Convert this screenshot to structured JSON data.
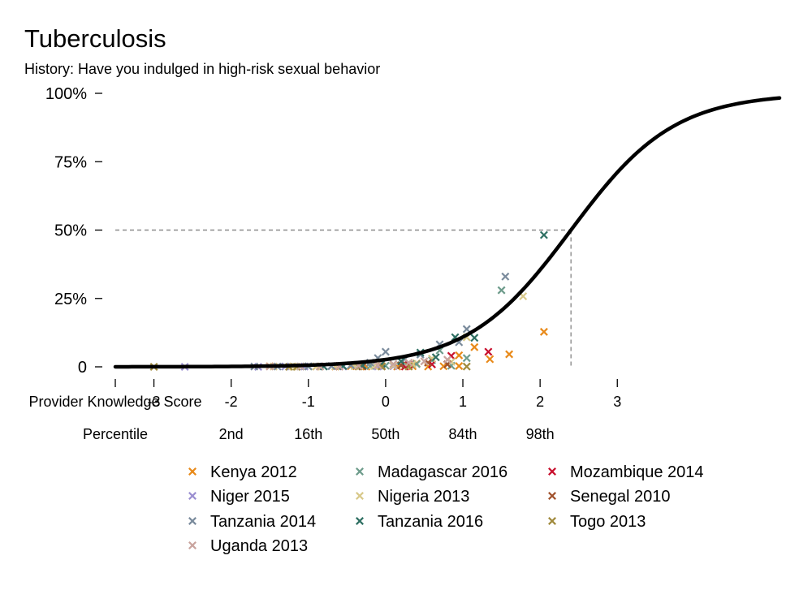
{
  "chart_data": {
    "type": "scatter",
    "title": "Tuberculosis",
    "subtitle": "History: Have you indulged in high-risk sexual behavior",
    "xlabel": "Provider Knowledge Score",
    "x_ticks": [
      -3,
      -2,
      -1,
      0,
      1,
      2,
      3
    ],
    "xlim": [
      -3.5,
      5.1
    ],
    "percentile_label": "Percentile",
    "percentile_ticks": [
      {
        "label": "2nd",
        "x": -2
      },
      {
        "label": "16th",
        "x": -1
      },
      {
        "label": "50th",
        "x": 0
      },
      {
        "label": "84th",
        "x": 1
      },
      {
        "label": "98th",
        "x": 2
      }
    ],
    "y_ticks": [
      {
        "label": "0",
        "value": 0
      },
      {
        "label": "25%",
        "value": 25
      },
      {
        "label": "50%",
        "value": 50
      },
      {
        "label": "75%",
        "value": 75
      },
      {
        "label": "100%",
        "value": 100
      }
    ],
    "ylim": [
      0,
      100
    ],
    "reference_line": {
      "y": 50,
      "x": 2.4
    },
    "fitted_curve": {
      "midpoint": 2.4,
      "slope": 1.5,
      "color": "#000000"
    },
    "legend_position": "bottom",
    "series": [
      {
        "name": "Kenya 2012",
        "color": "#e88a1a",
        "points": [
          [
            2.05,
            12.8
          ],
          [
            1.6,
            4.6
          ],
          [
            1.35,
            2.8
          ],
          [
            1.15,
            7.2
          ],
          [
            0.95,
            0.3
          ],
          [
            0.75,
            0.2
          ],
          [
            0.55,
            0.1
          ],
          [
            0.35,
            0.2
          ],
          [
            0.15,
            0.1
          ],
          [
            -0.05,
            0.2
          ],
          [
            -0.25,
            0.1
          ],
          [
            -0.45,
            0.2
          ],
          [
            -0.65,
            0.1
          ],
          [
            -0.9,
            0.1
          ],
          [
            -1.2,
            0.1
          ],
          [
            -1.5,
            0.2
          ],
          [
            0.4,
            1.2
          ],
          [
            0.95,
            4.2
          ]
        ]
      },
      {
        "name": "Madagascar 2016",
        "color": "#6e9c8c",
        "points": [
          [
            1.5,
            28.0
          ],
          [
            1.05,
            3.2
          ],
          [
            0.85,
            0.4
          ],
          [
            0.6,
            2.4
          ],
          [
            0.4,
            1.0
          ],
          [
            0.2,
            0.6
          ],
          [
            0.0,
            0.4
          ],
          [
            -0.2,
            0.3
          ],
          [
            -0.4,
            0.3
          ],
          [
            -0.7,
            0.2
          ],
          [
            -1.0,
            0.1
          ],
          [
            -1.3,
            0.1
          ],
          [
            0.7,
            6.0
          ]
        ]
      },
      {
        "name": "Mozambique 2014",
        "color": "#c8102e",
        "points": [
          [
            1.33,
            5.5
          ],
          [
            0.85,
            4.0
          ],
          [
            0.6,
            0.9
          ],
          [
            0.3,
            0.7
          ],
          [
            0.1,
            0.3
          ],
          [
            -0.1,
            0.4
          ],
          [
            -0.3,
            0.2
          ],
          [
            -0.6,
            0.3
          ],
          [
            -0.85,
            0.1
          ],
          [
            0.25,
            0.1
          ]
        ]
      },
      {
        "name": "Niger 2015",
        "color": "#9b8fd1",
        "points": [
          [
            -2.6,
            0.0
          ],
          [
            -1.65,
            0.0
          ],
          [
            -1.3,
            0.1
          ],
          [
            -1.05,
            0.1
          ],
          [
            -0.8,
            0.2
          ],
          [
            -0.55,
            0.1
          ],
          [
            -0.3,
            0.2
          ],
          [
            -0.1,
            0.1
          ],
          [
            0.1,
            0.2
          ]
        ]
      },
      {
        "name": "Nigeria 2013",
        "color": "#d8c98a",
        "points": [
          [
            1.78,
            25.8
          ],
          [
            1.05,
            10.8
          ],
          [
            0.6,
            3.0
          ],
          [
            0.35,
            1.0
          ],
          [
            0.1,
            0.5
          ],
          [
            -0.15,
            0.3
          ],
          [
            -0.4,
            0.2
          ],
          [
            -0.65,
            0.2
          ],
          [
            -0.9,
            0.1
          ],
          [
            -1.2,
            0.1
          ],
          [
            -1.45,
            0.1
          ],
          [
            0.85,
            1.8
          ]
        ]
      },
      {
        "name": "Senegal 2010",
        "color": "#a0522d",
        "points": [
          [
            0.55,
            1.5
          ],
          [
            0.2,
            0.5
          ],
          [
            -0.05,
            0.2
          ],
          [
            -0.3,
            0.1
          ],
          [
            -0.6,
            0.1
          ],
          [
            0.8,
            0.9
          ]
        ]
      },
      {
        "name": "Tanzania 2014",
        "color": "#7a8b9c",
        "points": [
          [
            1.55,
            33.0
          ],
          [
            1.05,
            13.8
          ],
          [
            0.95,
            9.0
          ],
          [
            0.7,
            8.2
          ],
          [
            0.45,
            4.5
          ],
          [
            0.25,
            2.8
          ],
          [
            0.0,
            5.5
          ],
          [
            -0.2,
            1.5
          ],
          [
            -0.45,
            0.6
          ],
          [
            -0.7,
            0.3
          ],
          [
            -1.0,
            0.2
          ],
          [
            -1.4,
            0.1
          ],
          [
            -1.7,
            0.1
          ],
          [
            -0.1,
            3.2
          ]
        ]
      },
      {
        "name": "Tanzania 2016",
        "color": "#2e6f62",
        "points": [
          [
            2.05,
            48.2
          ],
          [
            1.15,
            10.6
          ],
          [
            0.9,
            10.8
          ],
          [
            0.45,
            5.2
          ],
          [
            0.2,
            2.0
          ],
          [
            -0.05,
            1.2
          ],
          [
            -0.3,
            0.5
          ],
          [
            -0.55,
            0.3
          ],
          [
            -0.8,
            0.1
          ],
          [
            -1.1,
            0.1
          ],
          [
            0.65,
            3.5
          ]
        ]
      },
      {
        "name": "Togo 2013",
        "color": "#a08a3c",
        "points": [
          [
            -3.0,
            0.0
          ],
          [
            -1.25,
            0.0
          ],
          [
            -1.15,
            0.0
          ],
          [
            1.05,
            0.1
          ],
          [
            0.3,
            0.1
          ],
          [
            -0.05,
            0.1
          ],
          [
            -0.35,
            0.1
          ],
          [
            -0.85,
            0.1
          ]
        ]
      },
      {
        "name": "Uganda 2013",
        "color": "#c9a49e",
        "points": [
          [
            0.8,
            2.6
          ],
          [
            0.5,
            2.0
          ],
          [
            0.3,
            1.5
          ],
          [
            0.1,
            1.0
          ],
          [
            -0.1,
            0.6
          ],
          [
            -0.35,
            0.4
          ],
          [
            -0.6,
            0.2
          ],
          [
            -0.85,
            0.1
          ],
          [
            -1.1,
            0.1
          ],
          [
            -1.5,
            0.1
          ]
        ]
      }
    ]
  }
}
